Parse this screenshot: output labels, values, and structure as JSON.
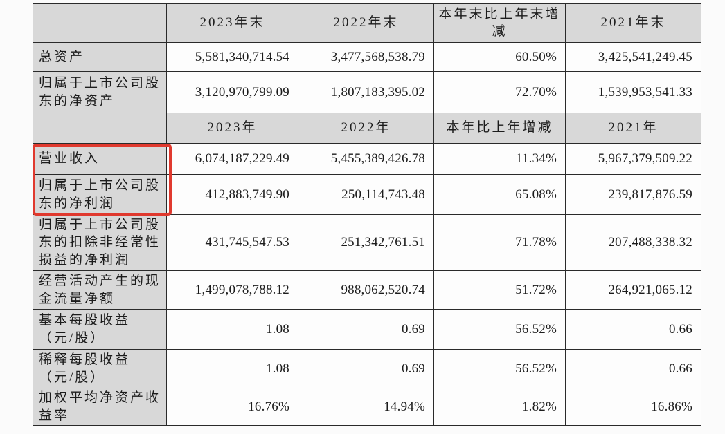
{
  "document": {
    "type": "financial-summary-table",
    "language": "zh-CN"
  },
  "colors": {
    "header_bg": "#d8d8d8",
    "label_bg": "#d8d8d8",
    "cell_bg": "#fdfdfd",
    "border": "#2a2a2a",
    "highlight_border": "#e0392e",
    "text": "#1c1c1c"
  },
  "highlight": {
    "description": "red annotation box around revenue and net profit row labels"
  },
  "rows": [
    {
      "kind": "header",
      "cells": [
        "",
        "2023年末",
        "2022年末",
        "本年末比上年末增减",
        "2021年末"
      ]
    },
    {
      "kind": "data",
      "cells": [
        "总资产",
        "5,581,340,714.54",
        "3,477,568,538.79",
        "60.50%",
        "3,425,541,249.45"
      ]
    },
    {
      "kind": "data",
      "cells": [
        "归属于上市公司股东的净资产",
        "3,120,970,799.09",
        "1,807,183,395.02",
        "72.70%",
        "1,539,953,541.33"
      ]
    },
    {
      "kind": "header",
      "cells": [
        "",
        "2023年",
        "2022年",
        "本年比上年增减",
        "2021年"
      ]
    },
    {
      "kind": "data",
      "cells": [
        "营业收入",
        "6,074,187,229.49",
        "5,455,389,426.78",
        "11.34%",
        "5,967,379,509.22"
      ]
    },
    {
      "kind": "data",
      "cells": [
        "归属于上市公司股东的净利润",
        "412,883,749.90",
        "250,114,743.48",
        "65.08%",
        "239,817,876.59"
      ]
    },
    {
      "kind": "data",
      "cells": [
        "归属于上市公司股东的扣除非经常性损益的净利润",
        "431,745,547.53",
        "251,342,761.51",
        "71.78%",
        "207,488,338.32"
      ]
    },
    {
      "kind": "data",
      "cells": [
        "经营活动产生的现金流量净额",
        "1,499,078,788.12",
        "988,062,520.74",
        "51.72%",
        "264,921,065.12"
      ]
    },
    {
      "kind": "data",
      "cells": [
        "基本每股收益（元/股）",
        "1.08",
        "0.69",
        "56.52%",
        "0.66"
      ]
    },
    {
      "kind": "data",
      "cells": [
        "稀释每股收益（元/股）",
        "1.08",
        "0.69",
        "56.52%",
        "0.66"
      ]
    },
    {
      "kind": "data",
      "cells": [
        "加权平均净资产收益率",
        "16.76%",
        "14.94%",
        "1.82%",
        "16.86%"
      ]
    }
  ]
}
